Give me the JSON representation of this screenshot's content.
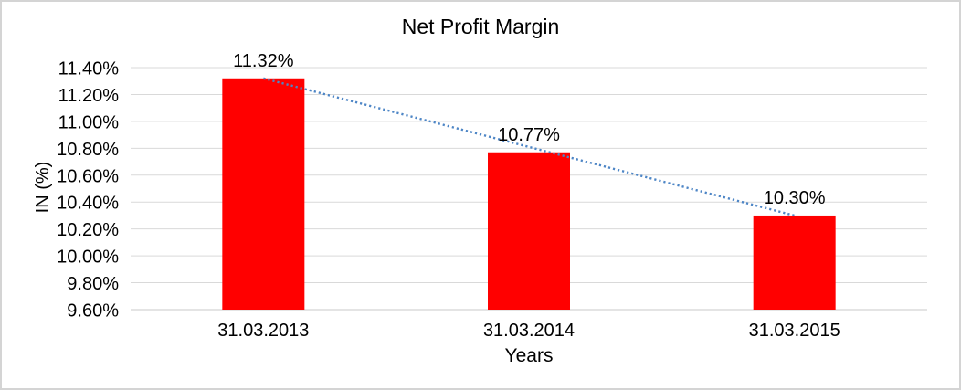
{
  "frame": {
    "background": "#ffffff",
    "border_color": "#d4d4d4"
  },
  "chart_data": {
    "type": "bar",
    "title": "Net Profit Margin",
    "xlabel": "Years",
    "ylabel": "IN (%)",
    "categories": [
      "31.03.2013",
      "31.03.2014",
      "31.03.2015"
    ],
    "series": [
      {
        "name": "Net Profit Margin",
        "values": [
          11.32,
          10.77,
          10.3
        ]
      }
    ],
    "data_labels": [
      "11.32%",
      "10.77%",
      "10.30%"
    ],
    "ylim": [
      9.6,
      11.4
    ],
    "ytick_step": 0.2,
    "ytick_labels": [
      "9.60%",
      "9.80%",
      "10.00%",
      "10.20%",
      "10.40%",
      "10.60%",
      "10.80%",
      "11.00%",
      "11.20%",
      "11.40%"
    ],
    "grid": true,
    "legend": "none",
    "trendline": {
      "type": "linear",
      "style": "dotted",
      "from_value": 11.32,
      "to_value": 10.3
    },
    "colors": {
      "bar": "#ff0000",
      "trendline": "#4e86c6",
      "gridline": "#d9d9d9",
      "axis_line": "#c9c9c9",
      "text": "#000000"
    }
  }
}
